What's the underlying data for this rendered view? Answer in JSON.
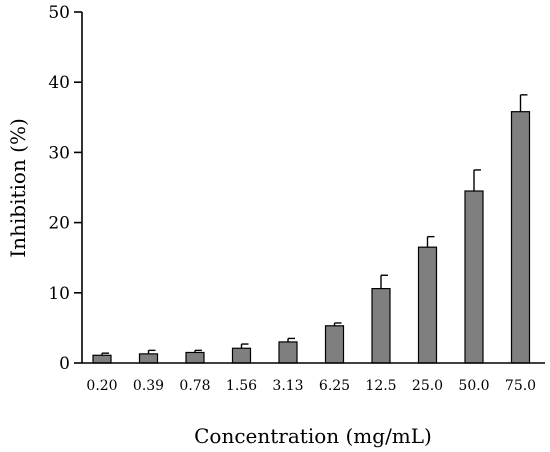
{
  "chart_data": {
    "type": "bar",
    "title": "",
    "xlabel": "Concentration (mg/mL)",
    "ylabel": "Inhibition (%)",
    "ylim": [
      0,
      50
    ],
    "yticks": [
      0,
      10,
      20,
      30,
      40,
      50
    ],
    "categories": [
      "0.20",
      "0.39",
      "0.78",
      "1.56",
      "3.13",
      "6.25",
      "12.5",
      "25.0",
      "50.0",
      "75.0"
    ],
    "values": [
      1.1,
      1.3,
      1.5,
      2.1,
      3.0,
      5.3,
      10.6,
      16.5,
      24.5,
      35.8
    ],
    "errors": [
      0.3,
      0.5,
      0.3,
      0.6,
      0.5,
      0.4,
      1.9,
      1.5,
      3.0,
      2.4
    ],
    "bar_color": "#7f7f7f",
    "grid": false,
    "error_bars": "upper"
  }
}
